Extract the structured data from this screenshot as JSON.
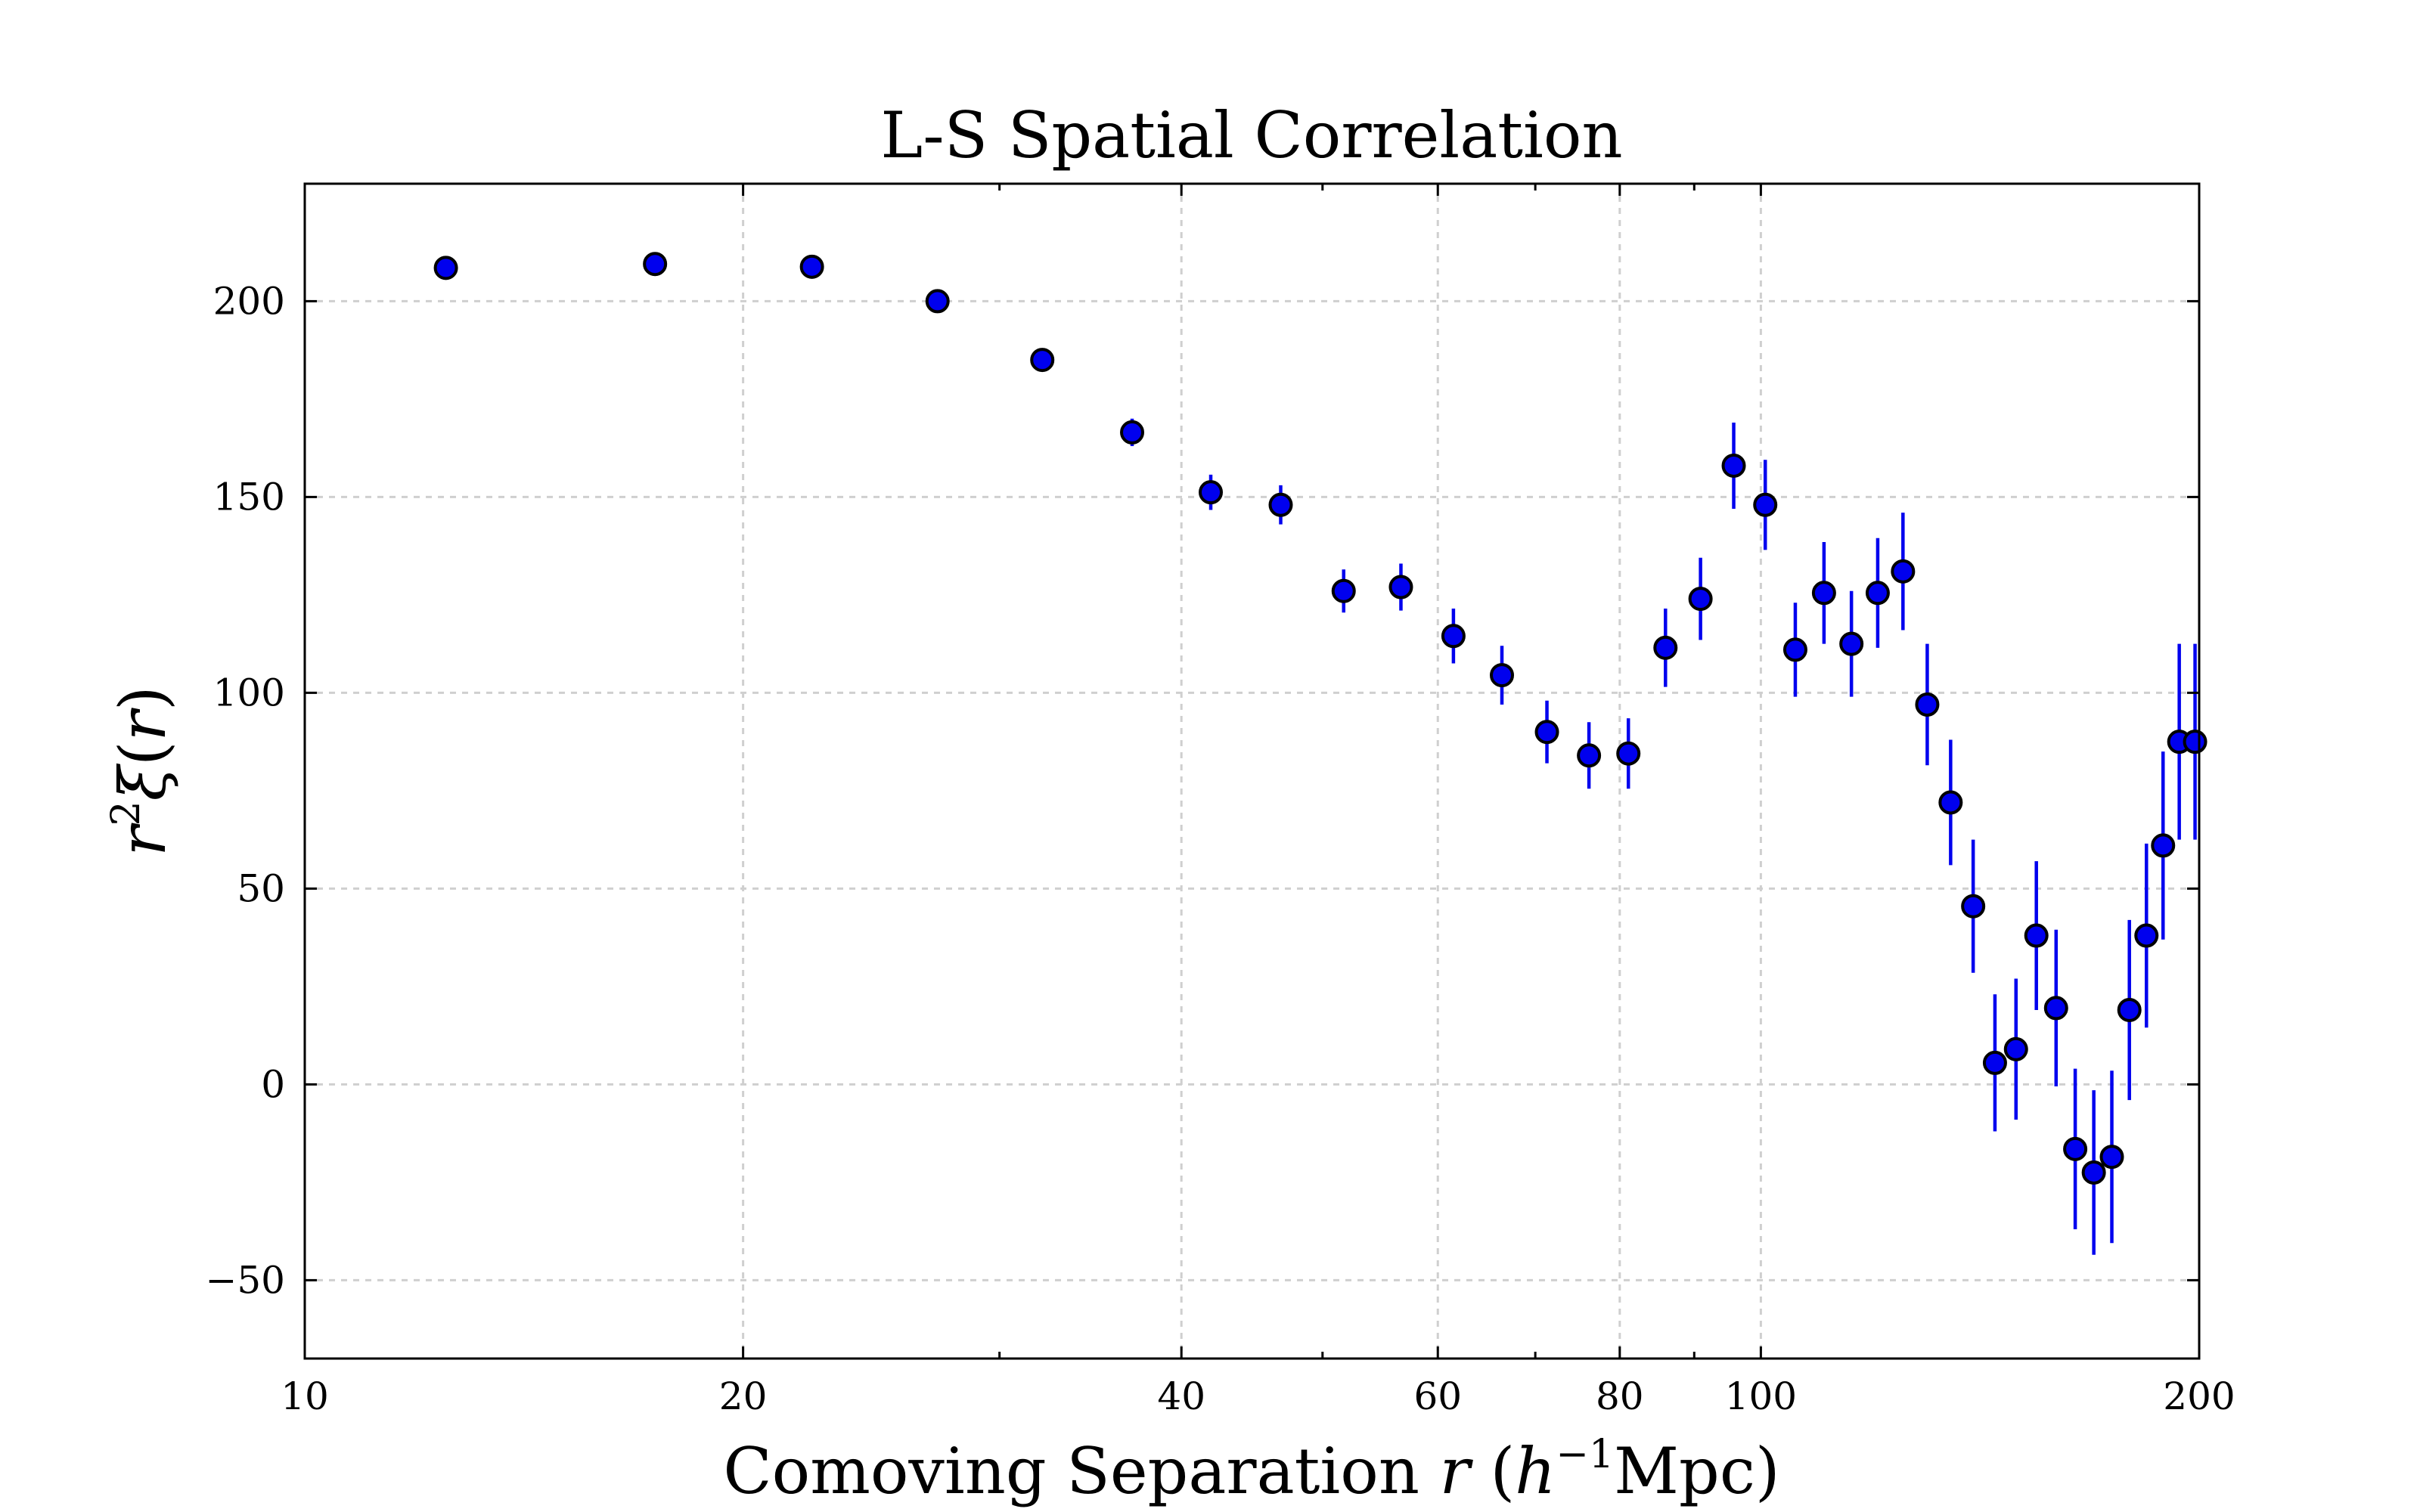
{
  "chart_data": {
    "type": "scatter",
    "title": "L-S Spatial Correlation",
    "xlabel": "Comoving Separation r (h⁻¹Mpc)",
    "ylabel": "r²ξ(r)",
    "x_scale": "log",
    "xlim": [
      10,
      200
    ],
    "ylim": [
      -70,
      230
    ],
    "grid": true,
    "marker_color": "#0000ee",
    "x_ticks": [
      10,
      20,
      40,
      60,
      80,
      100,
      200
    ],
    "x_tick_labels": [
      "10",
      "20",
      "40",
      "60",
      "80",
      "100",
      "200"
    ],
    "y_ticks": [
      -50,
      0,
      50,
      100,
      150,
      200
    ],
    "y_tick_labels": [
      "−50",
      "0",
      "50",
      "100",
      "150",
      "200"
    ],
    "x": [
      12.5,
      17.4,
      22.3,
      27.2,
      32.1,
      37.0,
      41.9,
      46.8,
      51.7,
      56.6,
      61.5,
      66.4,
      71.3,
      76.2,
      81.1,
      86.0,
      90.9,
      95.8,
      100.7,
      105.6,
      110.5,
      115.4,
      120.3,
      125.2,
      130.1,
      135.0,
      139.9,
      144.8,
      149.7,
      154.6,
      159.5,
      164.4,
      169.3,
      174.2,
      179.1,
      184.0,
      188.9,
      193.8,
      198.7
    ],
    "y": [
      208.5,
      209.5,
      208.8,
      200.0,
      185.0,
      166.5,
      151.2,
      148.0,
      126.0,
      127.0,
      114.5,
      104.5,
      90.0,
      84.0,
      84.5,
      111.5,
      124.0,
      158.0,
      148.0,
      111.0,
      125.5,
      112.5,
      125.5,
      131.0,
      97.0,
      72.0,
      45.5,
      5.5,
      9.0,
      38.0,
      19.5,
      -16.5,
      -22.5,
      -18.5,
      19.0,
      38.0,
      61.0,
      87.5,
      87.5
    ],
    "yerr": [
      1.5,
      1.5,
      1.5,
      2.0,
      2.5,
      3.5,
      4.5,
      5.0,
      5.5,
      6.0,
      7.0,
      7.5,
      8.0,
      8.5,
      9.0,
      10.0,
      10.5,
      11.0,
      11.5,
      12.0,
      13.0,
      13.5,
      14.0,
      15.0,
      15.5,
      16.0,
      17.0,
      17.5,
      18.0,
      19.0,
      20.0,
      20.5,
      21.0,
      22.0,
      23.0,
      23.5,
      24.0,
      25.0,
      25.0
    ]
  }
}
